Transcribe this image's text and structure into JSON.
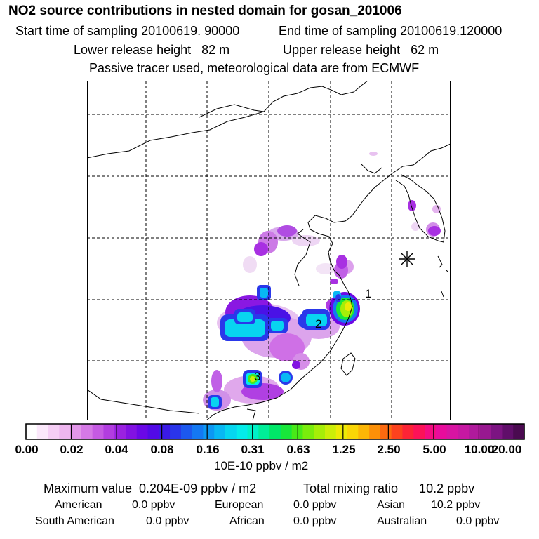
{
  "header": {
    "title": "NO2 source contributions in nested domain for gosan_201006",
    "start_sampling": "Start time of sampling 20100619. 90000",
    "end_sampling": "End time of sampling 20100619.120000",
    "lower_release": "Lower release height   82 m",
    "upper_release": "Upper release height   62 m",
    "note": "Passive tracer used, meteorological data are from ECMWF"
  },
  "map": {
    "markers": [
      "1",
      "2",
      "3"
    ],
    "receptor_symbol": "asterisk-icon"
  },
  "colorbar": {
    "ticks": [
      "0.00",
      "0.02",
      "0.04",
      "0.08",
      "0.16",
      "0.31",
      "0.63",
      "1.25",
      "2.50",
      "5.00",
      "10.00",
      "20.00"
    ],
    "colors": [
      "#ffffff",
      "#fbe8fb",
      "#f5cef5",
      "#eeb6ef",
      "#e397ea",
      "#d579e6",
      "#c55ae3",
      "#b23de0",
      "#9a22e0",
      "#8212e2",
      "#6a08e6",
      "#520ae6",
      "#3a1ae6",
      "#2a35ea",
      "#1c58ee",
      "#1478f2",
      "#0c98f4",
      "#08b8f4",
      "#06d6f0",
      "#04ecea",
      "#00f2c8",
      "#00ee98",
      "#00e868",
      "#18e83a",
      "#48ea18",
      "#7aec0c",
      "#a6ee08",
      "#ccee08",
      "#eeea06",
      "#fad606",
      "#fcb606",
      "#fc9008",
      "#fc6a10",
      "#fc421e",
      "#fc2436",
      "#fc1258",
      "#f40c82",
      "#e80c9c",
      "#d814a2",
      "#c618a2",
      "#b01a9c",
      "#981890",
      "#7c1482",
      "#600e6a",
      "#4a0a50"
    ],
    "unit": "10E-10 ppbv / m2"
  },
  "summary": {
    "max_value": "Maximum value  0.204E-09 ppbv / m2",
    "total_mixing": "Total mixing ratio      10.2 ppbv",
    "american_label": "American",
    "american_value": "0.0 ppbv",
    "european_label": "European",
    "european_value": "0.0 ppbv",
    "asian_label": "Asian",
    "asian_value": "10.2 ppbv",
    "south_american_label": "South American",
    "south_american_value": "0.0 ppbv",
    "african_label": "African",
    "african_value": "0.0 ppbv",
    "australian_label": "Australian",
    "australian_value": "0.0 ppbv"
  }
}
